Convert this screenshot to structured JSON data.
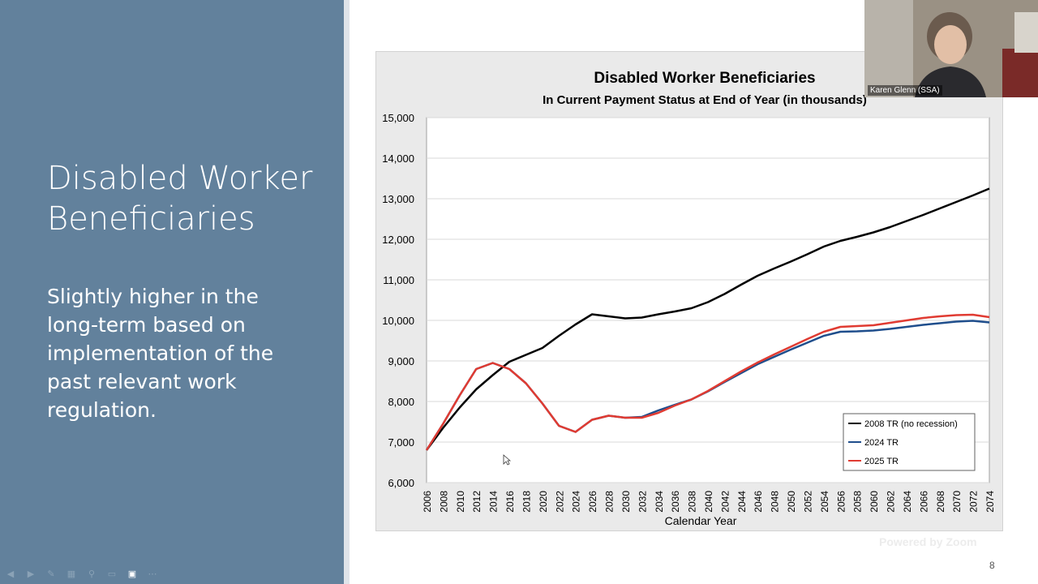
{
  "slide": {
    "title": "Disabled Worker Beneficiaries",
    "body": "Slightly higher in the long-term based on implementation of the past relevant work regulation.",
    "page_number": "8",
    "toolbar_icons": [
      "prev-icon",
      "next-icon",
      "pen-icon",
      "slides-icon",
      "zoom-icon",
      "subtitles-icon",
      "camera-icon",
      "more-icon"
    ]
  },
  "video": {
    "participant_name": "Karen Glenn (SSA)"
  },
  "watermark": "Powered by Zoom",
  "chart_data": {
    "type": "line",
    "title": "Disabled Worker Beneficiaries",
    "subtitle": "In Current Payment Status at End of Year (in thousands)",
    "xlabel": "Calendar Year",
    "ylabel": "",
    "xlim": [
      2006,
      2074
    ],
    "ylim": [
      6000,
      15000
    ],
    "y_ticks": [
      6000,
      7000,
      8000,
      9000,
      10000,
      11000,
      12000,
      13000,
      14000,
      15000
    ],
    "y_tick_labels": [
      "6,000",
      "7,000",
      "8,000",
      "9,000",
      "10,000",
      "11,000",
      "12,000",
      "13,000",
      "14,000",
      "15,000"
    ],
    "x_ticks": [
      2006,
      2008,
      2010,
      2012,
      2014,
      2016,
      2018,
      2020,
      2022,
      2024,
      2026,
      2028,
      2030,
      2032,
      2034,
      2036,
      2038,
      2040,
      2042,
      2044,
      2046,
      2048,
      2050,
      2052,
      2054,
      2056,
      2058,
      2060,
      2062,
      2064,
      2066,
      2068,
      2070,
      2072,
      2074
    ],
    "grid": true,
    "legend": "bottom-right",
    "series": [
      {
        "name": "2008 TR (no recession)",
        "color": "#000000",
        "x": [
          2006,
          2008,
          2010,
          2012,
          2014,
          2016,
          2018,
          2020,
          2022,
          2024,
          2026,
          2028,
          2030,
          2032,
          2034,
          2036,
          2038,
          2040,
          2042,
          2044,
          2046,
          2048,
          2050,
          2052,
          2054,
          2056,
          2058,
          2060,
          2062,
          2064,
          2066,
          2068,
          2070,
          2072,
          2074
        ],
        "values": [
          6800,
          7350,
          7850,
          8300,
          8650,
          8980,
          9150,
          9320,
          9620,
          9900,
          10150,
          10100,
          10050,
          10070,
          10150,
          10220,
          10300,
          10450,
          10650,
          10880,
          11100,
          11280,
          11450,
          11630,
          11820,
          11960,
          12060,
          12170,
          12300,
          12450,
          12600,
          12760,
          12920,
          13080,
          13250
        ]
      },
      {
        "name": "2024 TR",
        "color": "#1f4e8c",
        "x": [
          2006,
          2008,
          2010,
          2012,
          2014,
          2016,
          2018,
          2020,
          2022,
          2024,
          2026,
          2028,
          2030,
          2032,
          2034,
          2036,
          2038,
          2040,
          2042,
          2044,
          2046,
          2048,
          2050,
          2052,
          2054,
          2056,
          2058,
          2060,
          2062,
          2064,
          2066,
          2068,
          2070,
          2072,
          2074
        ],
        "values": [
          6800,
          7450,
          8150,
          8800,
          8950,
          8800,
          8450,
          7950,
          7400,
          7250,
          7550,
          7650,
          7600,
          7620,
          7780,
          7920,
          8050,
          8250,
          8480,
          8700,
          8920,
          9100,
          9280,
          9450,
          9620,
          9720,
          9730,
          9750,
          9790,
          9840,
          9890,
          9930,
          9970,
          9990,
          9950
        ]
      },
      {
        "name": "2025 TR",
        "color": "#e03b32",
        "x": [
          2006,
          2008,
          2010,
          2012,
          2014,
          2016,
          2018,
          2020,
          2022,
          2024,
          2026,
          2028,
          2030,
          2032,
          2034,
          2036,
          2038,
          2040,
          2042,
          2044,
          2046,
          2048,
          2050,
          2052,
          2054,
          2056,
          2058,
          2060,
          2062,
          2064,
          2066,
          2068,
          2070,
          2072,
          2074
        ],
        "values": [
          6800,
          7450,
          8150,
          8800,
          8950,
          8800,
          8450,
          7950,
          7400,
          7250,
          7550,
          7650,
          7600,
          7600,
          7720,
          7900,
          8050,
          8260,
          8500,
          8740,
          8960,
          9160,
          9350,
          9540,
          9720,
          9840,
          9860,
          9880,
          9940,
          10000,
          10060,
          10100,
          10130,
          10140,
          10080
        ]
      }
    ]
  }
}
